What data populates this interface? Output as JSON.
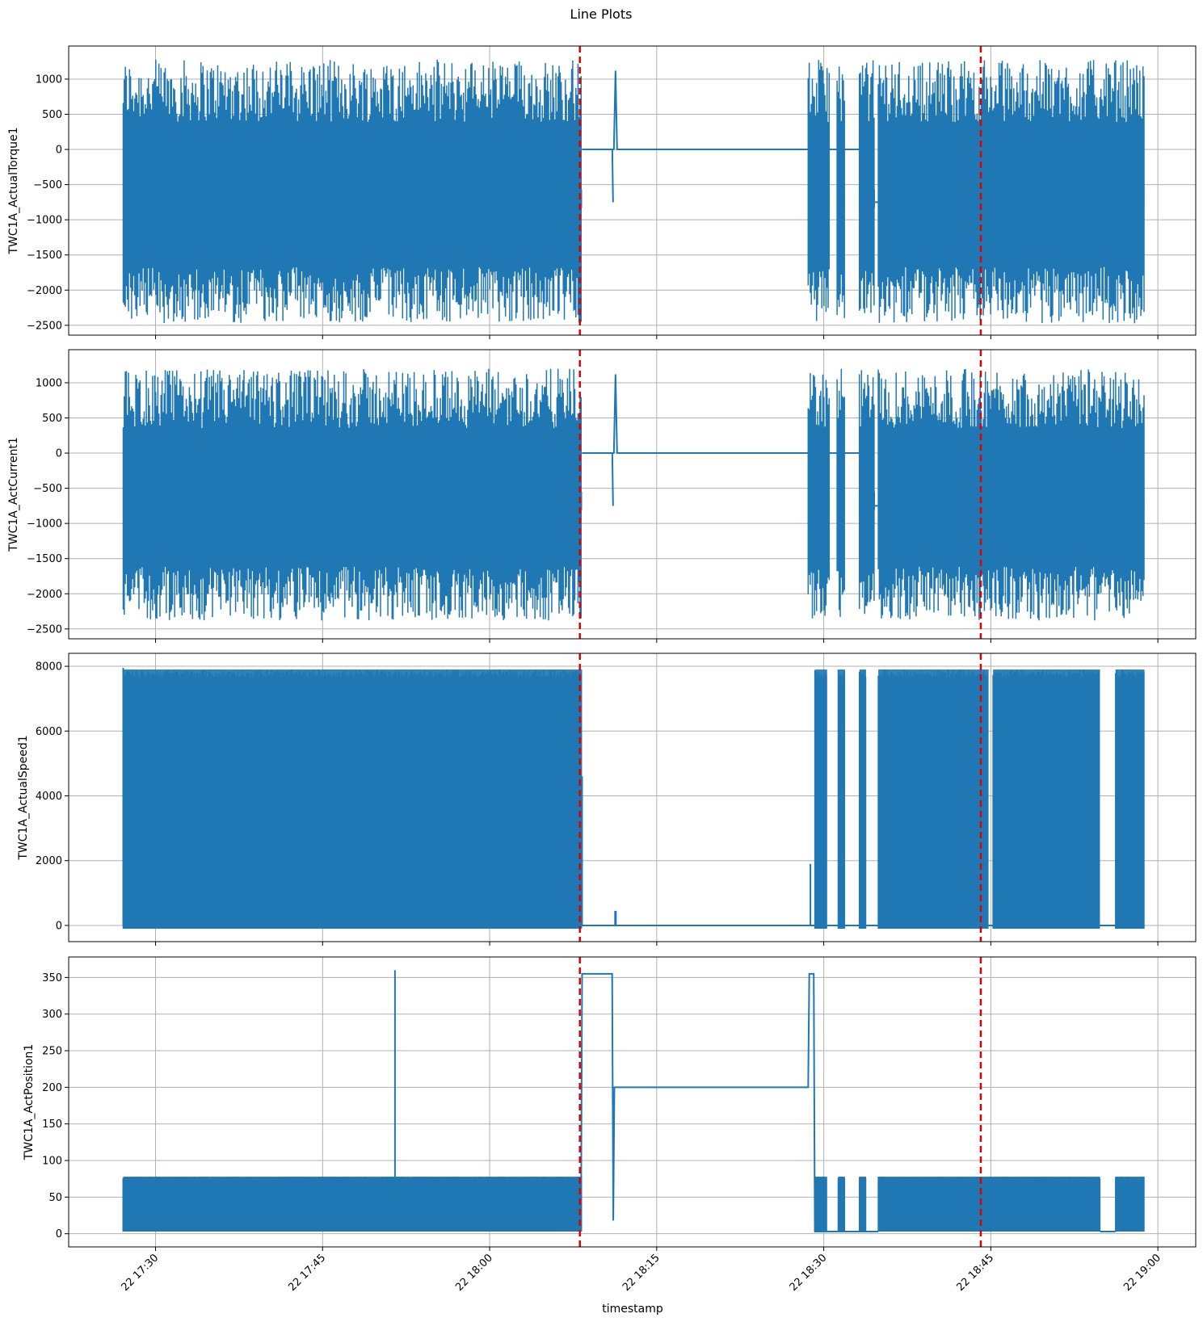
{
  "chart_data": {
    "type": "line",
    "title": "Line Plots",
    "xlabel": "timestamp",
    "x_tick_labels": [
      "22 17:30",
      "22 17:45",
      "22 18:00",
      "22 18:15",
      "22 18:30",
      "22 18:45",
      "22 19:00"
    ],
    "x_ticks_minutes": [
      1050,
      1065,
      1080,
      1095,
      1110,
      1125,
      1140
    ],
    "x_range_minutes": [
      1042.2,
      1143.4
    ],
    "data_start_minutes": [
      1047.1
    ],
    "data_end_minutes": [
      1138.9
    ],
    "vlines_minutes": [
      1088.1,
      1124.1
    ],
    "vline_color": "#e00000",
    "line_color": "#1f77b4",
    "grid": true,
    "subplots": [
      {
        "ylabel": "TWC1A_ActualTorque1",
        "yticks": [
          1000,
          500,
          0,
          -500,
          -1000,
          -1500,
          -2000,
          -2500
        ],
        "ylim": [
          -2640,
          1470
        ],
        "active_segments": [
          [
            1047.1,
            1088.3
          ],
          [
            1108.6,
            1110.5
          ],
          [
            1111.2,
            1111.9
          ],
          [
            1113.2,
            1114.6
          ],
          [
            1114.9,
            1138.8
          ]
        ],
        "flat_segments": [
          [
            1088.3,
            1091.2
          ],
          [
            1091.4,
            1108.6
          ],
          [
            1110.5,
            1111.2
          ],
          [
            1111.9,
            1113.2
          ]
        ],
        "base_level": -700,
        "peak_high": 1280,
        "peak_low": -2470
      },
      {
        "ylabel": "TWC1A_ActCurrent1",
        "yticks": [
          1000,
          500,
          0,
          -500,
          -1000,
          -1500,
          -2000,
          -2500
        ],
        "ylim": [
          -2640,
          1470
        ],
        "active_segments": [
          [
            1047.1,
            1088.3
          ],
          [
            1108.6,
            1110.5
          ],
          [
            1111.2,
            1111.9
          ],
          [
            1113.2,
            1114.6
          ],
          [
            1114.9,
            1138.8
          ]
        ],
        "flat_segments": [
          [
            1088.3,
            1091.2
          ],
          [
            1091.4,
            1108.6
          ],
          [
            1110.5,
            1111.2
          ],
          [
            1111.9,
            1113.2
          ]
        ],
        "base_level": -680,
        "peak_high": 1200,
        "peak_low": -2380
      },
      {
        "ylabel": "TWC1A_ActualSpeed1",
        "yticks": [
          8000,
          6000,
          4000,
          2000,
          0
        ],
        "ylim": [
          -500,
          8400
        ],
        "active_segments": [
          [
            1047.1,
            1088.3
          ],
          [
            1109.2,
            1110.3
          ],
          [
            1111.3,
            1111.9
          ],
          [
            1113.2,
            1113.8
          ],
          [
            1114.9,
            1124.8
          ],
          [
            1125.2,
            1134.8
          ],
          [
            1136.2,
            1138.8
          ]
        ],
        "high_level": 7900,
        "low_level": -100
      },
      {
        "ylabel": "TWC1A_ActPosition1",
        "yticks": [
          350,
          300,
          250,
          200,
          150,
          100,
          50,
          0
        ],
        "ylim": [
          -18,
          378
        ],
        "active_segments": [
          [
            1047.1,
            1088.3
          ],
          [
            1109.2,
            1110.3
          ],
          [
            1111.3,
            1111.9
          ],
          [
            1113.2,
            1113.8
          ],
          [
            1114.9,
            1134.8
          ],
          [
            1136.2,
            1138.8
          ]
        ],
        "high_level": 78,
        "low_level": 3
      }
    ]
  }
}
